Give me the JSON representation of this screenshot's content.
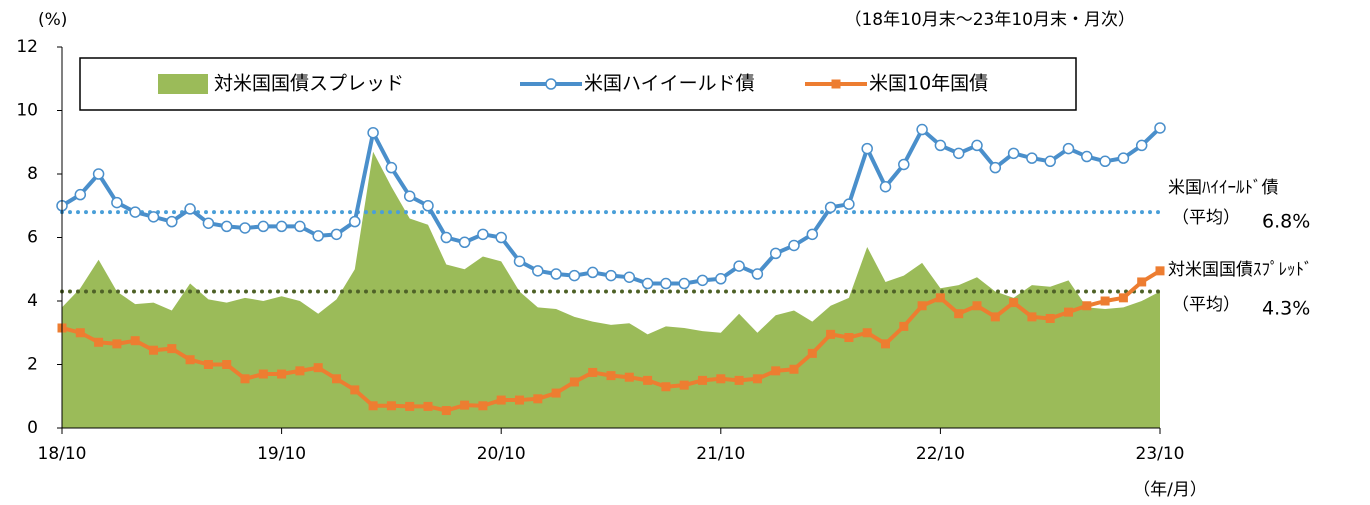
{
  "chart_data": {
    "type": "line",
    "unit_label": "(%)",
    "subtitle": "（18年10月末～23年10月末・月次）",
    "x_unit_label": "（年/月）",
    "categories": [
      "18/10",
      null,
      null,
      null,
      null,
      null,
      null,
      null,
      null,
      null,
      null,
      null,
      "19/10",
      null,
      null,
      null,
      null,
      null,
      null,
      null,
      null,
      null,
      null,
      null,
      "20/10",
      null,
      null,
      null,
      null,
      null,
      null,
      null,
      null,
      null,
      null,
      null,
      "21/10",
      null,
      null,
      null,
      null,
      null,
      null,
      null,
      null,
      null,
      null,
      null,
      "22/10",
      null,
      null,
      null,
      null,
      null,
      null,
      null,
      null,
      null,
      null,
      null,
      "23/10"
    ],
    "ylim": [
      0,
      12
    ],
    "yticks": [
      0,
      2,
      4,
      6,
      8,
      10,
      12
    ],
    "series": [
      {
        "name": "対米国国債スプレッド",
        "style": "area",
        "color": "#9bbb59",
        "values": [
          3.8,
          4.4,
          5.3,
          4.3,
          3.9,
          3.95,
          3.7,
          4.55,
          4.05,
          3.95,
          4.1,
          4.0,
          4.15,
          4.0,
          3.6,
          4.05,
          5.0,
          8.7,
          7.6,
          6.6,
          6.4,
          5.15,
          5.0,
          5.4,
          5.25,
          4.3,
          3.8,
          3.75,
          3.5,
          3.35,
          3.25,
          3.3,
          2.95,
          3.2,
          3.15,
          3.05,
          3.0,
          3.6,
          3.0,
          3.55,
          3.7,
          3.35,
          3.85,
          4.1,
          5.7,
          4.6,
          4.8,
          5.2,
          4.4,
          4.5,
          4.75,
          4.3,
          4.1,
          4.5,
          4.45,
          4.65,
          3.8,
          3.75,
          3.8,
          4.0,
          4.3
        ]
      },
      {
        "name": "米国ハイイールド債",
        "style": "line-circle",
        "color": "#4a8fcb",
        "values": [
          7.0,
          7.35,
          8.0,
          7.1,
          6.8,
          6.65,
          6.5,
          6.9,
          6.45,
          6.35,
          6.3,
          6.35,
          6.35,
          6.35,
          6.05,
          6.1,
          6.5,
          9.3,
          8.2,
          7.3,
          7.0,
          6.0,
          5.85,
          6.1,
          6.0,
          5.25,
          4.95,
          4.85,
          4.8,
          4.9,
          4.8,
          4.75,
          4.55,
          4.55,
          4.55,
          4.65,
          4.7,
          5.1,
          4.85,
          5.5,
          5.75,
          6.1,
          6.95,
          7.05,
          8.8,
          7.6,
          8.3,
          9.4,
          8.9,
          8.65,
          8.9,
          8.2,
          8.65,
          8.5,
          8.4,
          8.8,
          8.55,
          8.4,
          8.5,
          8.9,
          9.45
        ]
      },
      {
        "name": "米国10年国債",
        "style": "line-square",
        "color": "#ed7d31",
        "values": [
          3.15,
          3.0,
          2.7,
          2.65,
          2.75,
          2.45,
          2.5,
          2.15,
          2.0,
          2.0,
          1.55,
          1.7,
          1.7,
          1.8,
          1.9,
          1.55,
          1.2,
          0.7,
          0.7,
          0.68,
          0.68,
          0.55,
          0.72,
          0.7,
          0.88,
          0.88,
          0.92,
          1.1,
          1.45,
          1.75,
          1.65,
          1.6,
          1.5,
          1.3,
          1.35,
          1.5,
          1.55,
          1.5,
          1.55,
          1.8,
          1.85,
          2.35,
          2.95,
          2.85,
          3.0,
          2.65,
          3.2,
          3.85,
          4.1,
          3.6,
          3.85,
          3.5,
          3.95,
          3.5,
          3.45,
          3.65,
          3.85,
          4.0,
          4.1,
          4.6,
          4.95
        ]
      }
    ],
    "averages": [
      {
        "name": "米国ﾊｲｲｰﾙﾄﾞ債",
        "suffix": "（平均）",
        "value": 6.8,
        "value_label": "6.8%",
        "color": "#4a9fd8"
      },
      {
        "name": "対米国国債ｽﾌﾟﾚｯﾄﾞ",
        "suffix": "（平均）",
        "value": 4.3,
        "value_label": "4.3%",
        "color": "#4f6228"
      }
    ]
  }
}
